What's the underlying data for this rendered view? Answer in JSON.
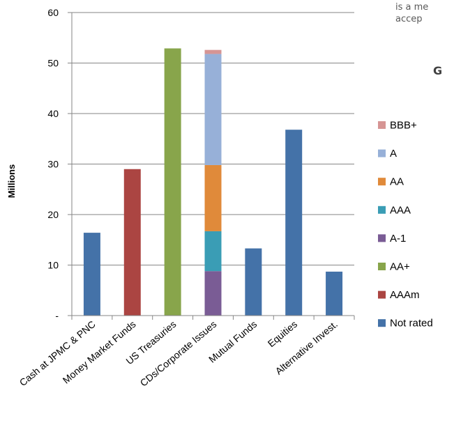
{
  "fragments": {
    "line1": "is a me",
    "line2": "accep",
    "line3": "G"
  },
  "colors": {
    "Not rated": "#4472a8",
    "AAAm": "#ab4542",
    "AA+": "#88a54b",
    "A-1": "#7a5c95",
    "AAA": "#3a9db5",
    "AA": "#e08a3a",
    "A": "#97b0d8",
    "BBB+": "#d69594"
  },
  "chart_data": {
    "type": "bar",
    "stacked": true,
    "title": "",
    "xlabel": "",
    "ylabel": "Millions",
    "ylim": [
      0,
      60
    ],
    "yticks": [
      0,
      10,
      20,
      30,
      40,
      50,
      60
    ],
    "ytick_labels": [
      "-",
      "10",
      "20",
      "30",
      "40",
      "50",
      "60"
    ],
    "grid": "horizontal",
    "legend_position": "right",
    "categories": [
      "Cash at JPMC & PNC",
      "Money Market Funds",
      "US Treasuries",
      "CDs/Corporate Issues",
      "Mutual Funds",
      "Equities",
      "Alternative Invest."
    ],
    "series": [
      {
        "name": "Not rated",
        "values": [
          16.4,
          0,
          0,
          0,
          13.3,
          36.8,
          8.7
        ]
      },
      {
        "name": "AAAm",
        "values": [
          0,
          29.0,
          0,
          0,
          0,
          0,
          0
        ]
      },
      {
        "name": "AA+",
        "values": [
          0,
          0,
          52.9,
          0,
          0,
          0,
          0
        ]
      },
      {
        "name": "A-1",
        "values": [
          0,
          0,
          0,
          8.8,
          0,
          0,
          0
        ]
      },
      {
        "name": "AAA",
        "values": [
          0,
          0,
          0,
          7.9,
          0,
          0,
          0
        ]
      },
      {
        "name": "AA",
        "values": [
          0,
          0,
          0,
          13.1,
          0,
          0,
          0
        ]
      },
      {
        "name": "A",
        "values": [
          0,
          0,
          0,
          22.0,
          0,
          0,
          0
        ]
      },
      {
        "name": "BBB+",
        "values": [
          0,
          0,
          0,
          0.8,
          0,
          0,
          0
        ]
      }
    ],
    "legend_order": [
      "BBB+",
      "A",
      "AA",
      "AAA",
      "A-1",
      "AA+",
      "AAAm",
      "Not rated"
    ]
  }
}
